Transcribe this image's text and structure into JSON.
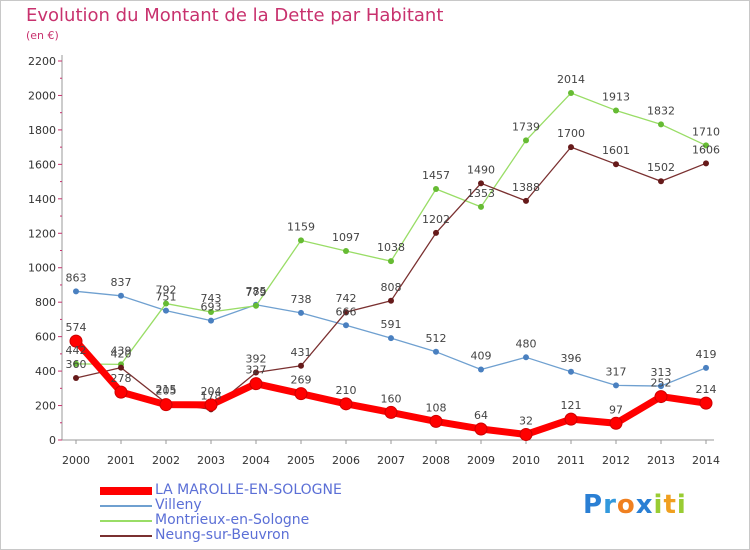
{
  "chart_data": {
    "type": "line",
    "title": "Evolution du Montant de la Dette par Habitant",
    "subtitle": "(en €)",
    "x": [
      "2000",
      "2001",
      "2002",
      "2003",
      "2004",
      "2005",
      "2006",
      "2007",
      "2008",
      "2009",
      "2010",
      "2011",
      "2012",
      "2013",
      "2014"
    ],
    "ylim": [
      0,
      2200
    ],
    "yticks": [
      0,
      200,
      400,
      600,
      800,
      1000,
      1200,
      1400,
      1600,
      1800,
      2000,
      2200
    ],
    "grid": false,
    "legend_position": "bottom-left",
    "series": [
      {
        "name": "LA MAROLLE-EN-SOLOGNE",
        "color": "#ff0000",
        "marker_color": "#ff0000",
        "values": [
          574,
          278,
          205,
          204,
          327,
          269,
          210,
          160,
          108,
          64,
          32,
          121,
          97,
          252,
          214
        ],
        "labels": [
          "574",
          "278",
          "205",
          "204",
          "327",
          "269",
          "210",
          "160",
          "108",
          "64",
          "32",
          "121",
          "97",
          "252",
          "214"
        ]
      },
      {
        "name": "Villeny",
        "color": "#6fa0d0",
        "marker_color": "#4a80c0",
        "values": [
          863,
          837,
          751,
          693,
          785,
          738,
          666,
          591,
          512,
          409,
          480,
          396,
          317,
          313,
          419
        ],
        "labels": [
          "863",
          "837",
          "751",
          "693",
          "785",
          "738",
          "666",
          "591",
          "512",
          "409",
          "480",
          "396",
          "317",
          "313",
          "419"
        ]
      },
      {
        "name": "Montrieux-en-Sologne",
        "color": "#99dd66",
        "marker_color": "#66bb33",
        "values": [
          442,
          439,
          792,
          743,
          779,
          1159,
          1097,
          1038,
          1457,
          1353,
          1739,
          2014,
          1913,
          1832,
          1710
        ],
        "labels": [
          "442",
          "439",
          "792",
          "743",
          "779",
          "1159",
          "1097",
          "1038",
          "1457",
          "1353",
          "1739",
          "2014",
          "1913",
          "1832",
          "1710"
        ]
      },
      {
        "name": "Neung-sur-Beuvron",
        "color": "#7a3030",
        "marker_color": "#661a1a",
        "values": [
          360,
          420,
          215,
          178,
          392,
          431,
          742,
          808,
          1202,
          1490,
          1388,
          1700,
          1601,
          1502,
          1606
        ],
        "labels": [
          "360",
          "420",
          "215",
          "178",
          "392",
          "431",
          "742",
          "808",
          "1202",
          "1490",
          "1388",
          "1700",
          "1601",
          "1502",
          "1606"
        ]
      }
    ]
  },
  "logo": {
    "letters": [
      "P",
      "r",
      "o",
      "x",
      "i",
      "t",
      "i"
    ],
    "colors": [
      "#2a7fd4",
      "#3399dd",
      "#f08020",
      "#2a7fd4",
      "#99cc33",
      "#f0a020",
      "#99cc33"
    ]
  }
}
